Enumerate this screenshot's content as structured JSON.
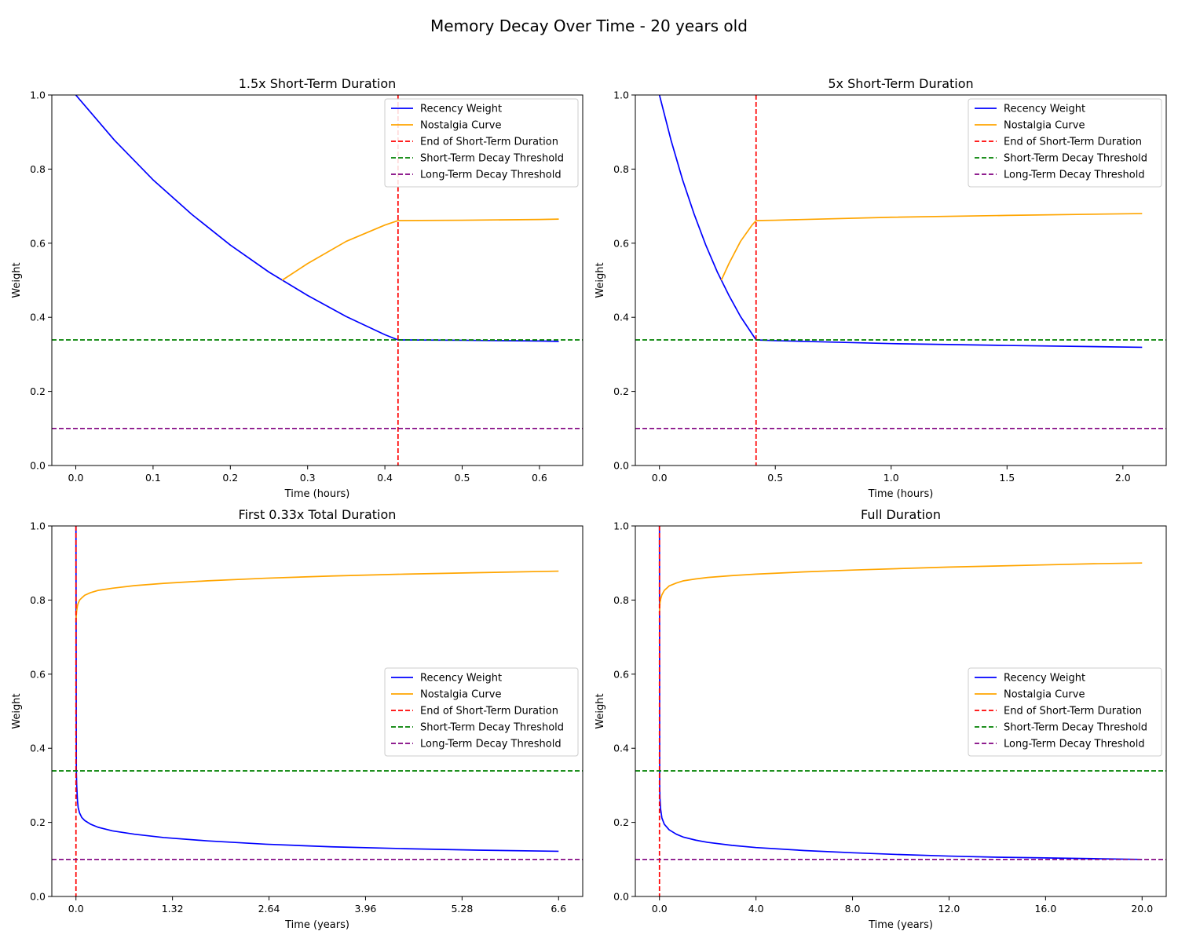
{
  "figure": {
    "suptitle": "Memory Decay Over Time - 20 years old"
  },
  "legend_entries": [
    {
      "label": "Recency Weight",
      "color": "#0000ff",
      "style": "solid"
    },
    {
      "label": "Nostalgia Curve",
      "color": "#ffa500",
      "style": "solid"
    },
    {
      "label": "End of Short-Term Duration",
      "color": "#ff0000",
      "style": "dashed"
    },
    {
      "label": "Short-Term Decay Threshold",
      "color": "#008000",
      "style": "dashed"
    },
    {
      "label": "Long-Term Decay Threshold",
      "color": "#800080",
      "style": "dashed"
    }
  ],
  "chart_data": [
    {
      "type": "line",
      "title": "1.5x Short-Term Duration",
      "xlabel": "Time (hours)",
      "ylabel": "Weight",
      "xlim": [
        -0.031,
        0.656
      ],
      "ylim": [
        0,
        1
      ],
      "xticks": [
        0.0,
        0.1,
        0.2,
        0.3,
        0.4,
        0.5,
        0.6
      ],
      "xtick_labels": [
        "0.0",
        "0.1",
        "0.2",
        "0.3",
        "0.4",
        "0.5",
        "0.6"
      ],
      "yticks": [
        0.0,
        0.2,
        0.4,
        0.6,
        0.8,
        1.0
      ],
      "ytick_labels": [
        "0.0",
        "0.2",
        "0.4",
        "0.6",
        "0.8",
        "1.0"
      ],
      "legend_position": "upper right",
      "grid": false,
      "series": [
        {
          "name": "Recency Weight",
          "color": "#0000ff",
          "x": [
            0.0,
            0.05,
            0.1,
            0.15,
            0.2,
            0.25,
            0.3,
            0.35,
            0.4,
            0.417,
            0.5,
            0.6,
            0.625
          ],
          "y": [
            1.0,
            0.878,
            0.771,
            0.678,
            0.595,
            0.522,
            0.459,
            0.402,
            0.353,
            0.339,
            0.338,
            0.336,
            0.335
          ]
        },
        {
          "name": "Nostalgia Curve",
          "color": "#ffa500",
          "x": [
            0.267,
            0.3,
            0.35,
            0.4,
            0.417,
            0.5,
            0.6,
            0.625
          ],
          "y": [
            0.5,
            0.545,
            0.605,
            0.649,
            0.661,
            0.662,
            0.664,
            0.665
          ]
        }
      ],
      "thresholds": {
        "end_short_term_x": 0.417,
        "short_term_decay_y": 0.339,
        "long_term_decay_y": 0.1
      }
    },
    {
      "type": "line",
      "title": "5x Short-Term Duration",
      "xlabel": "Time (hours)",
      "ylabel": "Weight",
      "xlim": [
        -0.104,
        2.187
      ],
      "ylim": [
        0,
        1
      ],
      "xticks": [
        0.0,
        0.5,
        1.0,
        1.5,
        2.0
      ],
      "xtick_labels": [
        "0.0",
        "0.5",
        "1.0",
        "1.5",
        "2.0"
      ],
      "yticks": [
        0.0,
        0.2,
        0.4,
        0.6,
        0.8,
        1.0
      ],
      "ytick_labels": [
        "0.0",
        "0.2",
        "0.4",
        "0.6",
        "0.8",
        "1.0"
      ],
      "legend_position": "upper right",
      "grid": false,
      "series": [
        {
          "name": "Recency Weight",
          "color": "#0000ff",
          "x": [
            0.0,
            0.05,
            0.1,
            0.15,
            0.2,
            0.25,
            0.3,
            0.35,
            0.417,
            0.5,
            1.0,
            1.5,
            2.083
          ],
          "y": [
            1.0,
            0.878,
            0.771,
            0.678,
            0.595,
            0.522,
            0.459,
            0.402,
            0.339,
            0.337,
            0.329,
            0.324,
            0.319
          ]
        },
        {
          "name": "Nostalgia Curve",
          "color": "#ffa500",
          "x": [
            0.267,
            0.3,
            0.35,
            0.4,
            0.417,
            0.5,
            1.0,
            1.5,
            2.083
          ],
          "y": [
            0.5,
            0.545,
            0.605,
            0.649,
            0.661,
            0.662,
            0.67,
            0.675,
            0.68
          ]
        }
      ],
      "thresholds": {
        "end_short_term_x": 0.417,
        "short_term_decay_y": 0.339,
        "long_term_decay_y": 0.1
      }
    },
    {
      "type": "line",
      "title": "First 0.33x Total Duration",
      "xlabel": "Time (years)",
      "ylabel": "Weight",
      "xlim": [
        -0.33,
        6.93
      ],
      "ylim": [
        0,
        1
      ],
      "xticks": [
        0.0,
        1.32,
        2.64,
        3.96,
        5.28,
        6.6
      ],
      "xtick_labels": [
        "0.0",
        "1.32",
        "2.64",
        "3.96",
        "5.28",
        "6.6"
      ],
      "yticks": [
        0.0,
        0.2,
        0.4,
        0.6,
        0.8,
        1.0
      ],
      "ytick_labels": [
        "0.0",
        "0.2",
        "0.4",
        "0.6",
        "0.8",
        "1.0"
      ],
      "legend_position": "center right",
      "grid": false,
      "series": [
        {
          "name": "Recency Weight",
          "color": "#0000ff",
          "x": [
            0.0,
            0.005,
            0.01,
            0.02,
            0.03,
            0.05,
            0.08,
            0.12,
            0.2,
            0.3,
            0.5,
            0.8,
            1.2,
            1.8,
            2.6,
            3.5,
            4.5,
            5.5,
            6.6
          ],
          "y": [
            1.0,
            0.34,
            0.3,
            0.26,
            0.24,
            0.225,
            0.213,
            0.205,
            0.195,
            0.187,
            0.177,
            0.168,
            0.159,
            0.15,
            0.141,
            0.134,
            0.129,
            0.125,
            0.122
          ]
        },
        {
          "name": "Nostalgia Curve",
          "color": "#ffa500",
          "x": [
            0.0,
            0.005,
            0.01,
            0.02,
            0.03,
            0.05,
            0.08,
            0.12,
            0.2,
            0.3,
            0.5,
            0.8,
            1.2,
            1.8,
            2.6,
            3.5,
            4.5,
            5.5,
            6.6
          ],
          "y": [
            0.74,
            0.76,
            0.771,
            0.784,
            0.791,
            0.8,
            0.806,
            0.813,
            0.82,
            0.826,
            0.832,
            0.839,
            0.845,
            0.852,
            0.859,
            0.865,
            0.87,
            0.874,
            0.878
          ]
        }
      ],
      "thresholds": {
        "end_short_term_x": 0.0,
        "short_term_decay_y": 0.339,
        "long_term_decay_y": 0.1
      }
    },
    {
      "type": "line",
      "title": "Full Duration",
      "xlabel": "Time (years)",
      "ylabel": "Weight",
      "xlim": [
        -1.0,
        21.0
      ],
      "ylim": [
        0,
        1
      ],
      "xticks": [
        0.0,
        4.0,
        8.0,
        12.0,
        16.0,
        20.0
      ],
      "xtick_labels": [
        "0.0",
        "4.0",
        "8.0",
        "12.0",
        "16.0",
        "20.0"
      ],
      "yticks": [
        0.0,
        0.2,
        0.4,
        0.6,
        0.8,
        1.0
      ],
      "ytick_labels": [
        "0.0",
        "0.2",
        "0.4",
        "0.6",
        "0.8",
        "1.0"
      ],
      "legend_position": "center right",
      "grid": false,
      "series": [
        {
          "name": "Recency Weight",
          "color": "#0000ff",
          "x": [
            0.0,
            0.01,
            0.02,
            0.05,
            0.1,
            0.2,
            0.4,
            0.7,
            1.0,
            1.5,
            2.0,
            3.0,
            4.0,
            6.0,
            8.0,
            10.0,
            12.0,
            14.0,
            16.0,
            18.0,
            20.0
          ],
          "y": [
            1.0,
            0.3,
            0.265,
            0.235,
            0.212,
            0.195,
            0.18,
            0.168,
            0.16,
            0.152,
            0.146,
            0.138,
            0.132,
            0.124,
            0.118,
            0.113,
            0.109,
            0.106,
            0.104,
            0.102,
            0.1
          ]
        },
        {
          "name": "Nostalgia Curve",
          "color": "#ffa500",
          "x": [
            0.0,
            0.01,
            0.02,
            0.05,
            0.1,
            0.2,
            0.4,
            0.7,
            1.0,
            1.5,
            2.0,
            3.0,
            4.0,
            6.0,
            8.0,
            10.0,
            12.0,
            14.0,
            16.0,
            18.0,
            20.0
          ],
          "y": [
            0.765,
            0.78,
            0.79,
            0.803,
            0.814,
            0.826,
            0.838,
            0.846,
            0.852,
            0.857,
            0.861,
            0.866,
            0.87,
            0.876,
            0.881,
            0.885,
            0.889,
            0.892,
            0.895,
            0.898,
            0.9
          ]
        }
      ],
      "thresholds": {
        "end_short_term_x": 0.0,
        "short_term_decay_y": 0.339,
        "long_term_decay_y": 0.1
      }
    }
  ]
}
